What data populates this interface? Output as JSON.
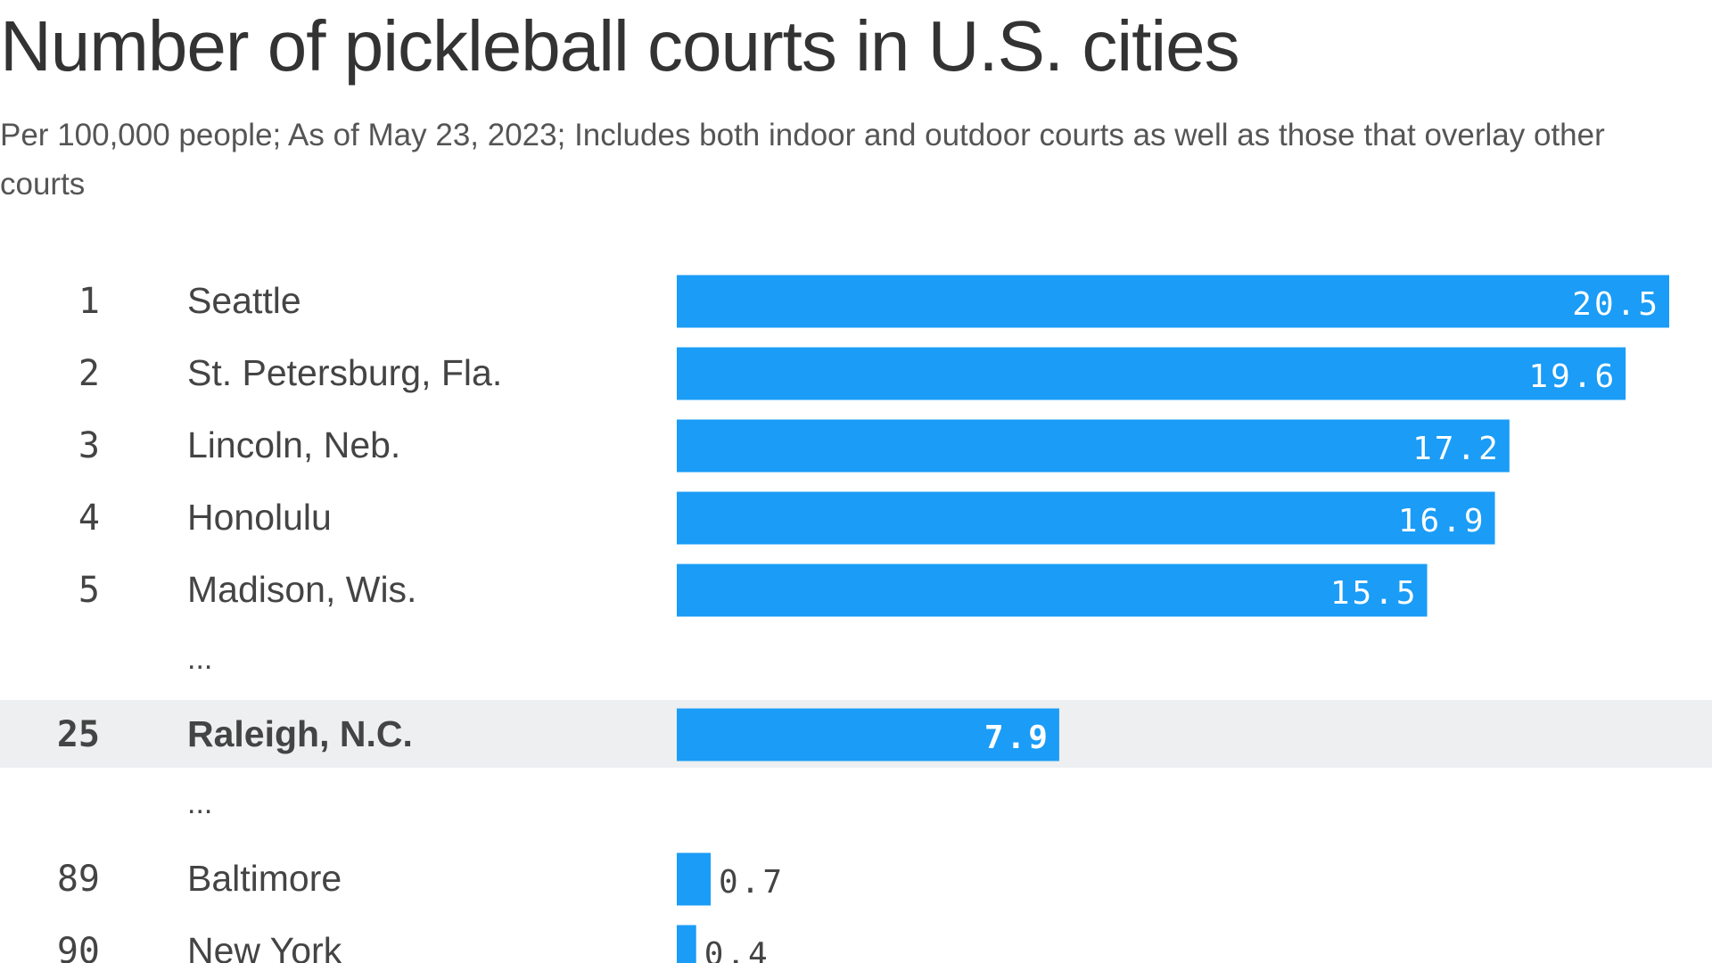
{
  "title": "Number of pickleball courts in U.S. cities",
  "subtitle": "Per 100,000 people; As of May 23, 2023; Includes both indoor and outdoor courts as well as those that overlay other courts",
  "colors": {
    "bar": "#1a9cf7",
    "highlight_row": "#eeeff1",
    "value_inside": "#ffffff",
    "value_outside": "#444444",
    "text": "#444444"
  },
  "chart_data": {
    "type": "bar",
    "orientation": "horizontal",
    "title": "Number of pickleball courts in U.S. cities",
    "subtitle": "Per 100,000 people; As of May 23, 2023; Includes both indoor and outdoor courts as well as those that overlay other courts",
    "xlim": [
      0,
      20.5
    ],
    "gap_label": "...",
    "rows": [
      {
        "rank": "1",
        "city": "Seattle",
        "value": 20.5,
        "label": "20.5",
        "highlight": false
      },
      {
        "rank": "2",
        "city": "St. Petersburg, Fla.",
        "value": 19.6,
        "label": "19.6",
        "highlight": false
      },
      {
        "rank": "3",
        "city": "Lincoln, Neb.",
        "value": 17.2,
        "label": "17.2",
        "highlight": false
      },
      {
        "rank": "4",
        "city": "Honolulu",
        "value": 16.9,
        "label": "16.9",
        "highlight": false
      },
      {
        "rank": "5",
        "city": "Madison, Wis.",
        "value": 15.5,
        "label": "15.5",
        "highlight": false
      },
      {
        "gap": true
      },
      {
        "rank": "25",
        "city": "Raleigh, N.C.",
        "value": 7.9,
        "label": "7.9",
        "highlight": true
      },
      {
        "gap": true
      },
      {
        "rank": "89",
        "city": "Baltimore",
        "value": 0.7,
        "label": "0.7",
        "highlight": false
      },
      {
        "rank": "90",
        "city": "New York",
        "value": 0.4,
        "label": "0.4",
        "highlight": false
      }
    ]
  }
}
